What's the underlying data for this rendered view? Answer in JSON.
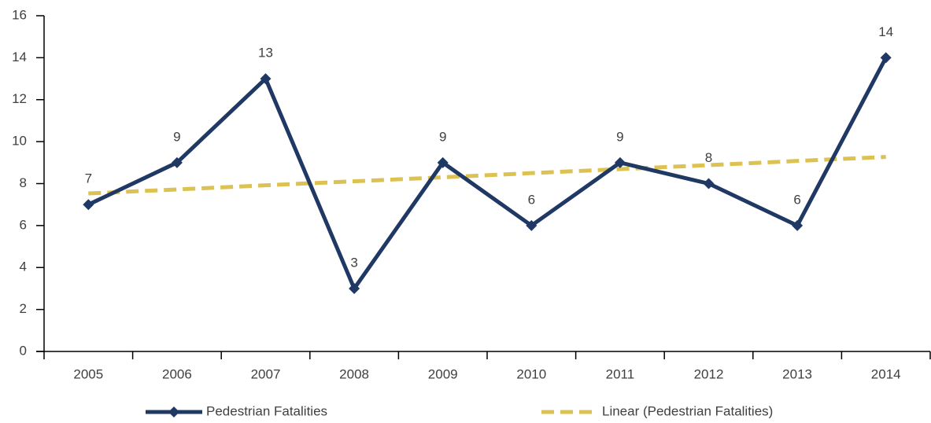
{
  "chart_data": {
    "type": "line",
    "categories": [
      "2005",
      "2006",
      "2007",
      "2008",
      "2009",
      "2010",
      "2011",
      "2012",
      "2013",
      "2014"
    ],
    "series": [
      {
        "name": "Pedestrian Fatalities",
        "color": "#1f3864",
        "values": [
          7,
          9,
          13,
          3,
          9,
          6,
          9,
          8,
          6,
          14
        ]
      },
      {
        "name": "Linear (Pedestrian Fatalities)",
        "color": "#dcc153",
        "dashed": true,
        "values": [
          7.53,
          7.72,
          7.92,
          8.11,
          8.3,
          8.5,
          8.69,
          8.88,
          9.08,
          9.27
        ]
      }
    ],
    "data_labels_series": 0,
    "ylim": [
      0,
      16
    ],
    "yticks": [
      0,
      2,
      4,
      6,
      8,
      10,
      12,
      14,
      16
    ],
    "grid": false,
    "legend": "bottom"
  }
}
